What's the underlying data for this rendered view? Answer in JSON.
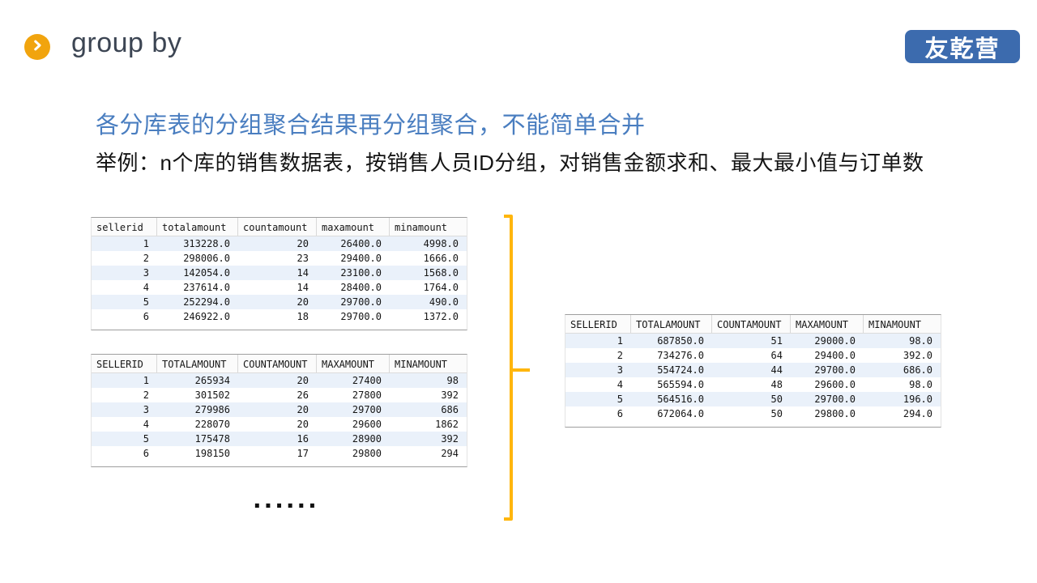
{
  "header": {
    "title": "group by",
    "logo_text": "友乾营"
  },
  "content": {
    "heading": "各分库表的分组聚合结果再分组聚合，不能简单合并",
    "subheading": "举例：n个库的销售数据表，按销售人员ID分组，对销售金额求和、最大最小值与订单数",
    "ellipsis": "......"
  },
  "colors": {
    "accent_amber": "#F1A40E",
    "brace_orange": "#FFB60D",
    "heading_blue": "#4A7EC0",
    "logo_blue": "#3C6BAE",
    "title_gray": "#3C4553",
    "row_stripe_blue": "#EAF1FA"
  },
  "tables": {
    "shard1": {
      "columns": [
        "sellerid",
        "totalamount",
        "countamount",
        "maxamount",
        "minamount"
      ],
      "rows": [
        [
          "1",
          "313228.0",
          "20",
          "26400.0",
          "4998.0"
        ],
        [
          "2",
          "298006.0",
          "23",
          "29400.0",
          "1666.0"
        ],
        [
          "3",
          "142054.0",
          "14",
          "23100.0",
          "1568.0"
        ],
        [
          "4",
          "237614.0",
          "14",
          "28400.0",
          "1764.0"
        ],
        [
          "5",
          "252294.0",
          "20",
          "29700.0",
          "490.0"
        ],
        [
          "6",
          "246922.0",
          "18",
          "29700.0",
          "1372.0"
        ]
      ]
    },
    "shard2": {
      "columns": [
        "SELLERID",
        "TOTALAMOUNT",
        "COUNTAMOUNT",
        "MAXAMOUNT",
        "MINAMOUNT"
      ],
      "rows": [
        [
          "1",
          "265934",
          "20",
          "27400",
          "98"
        ],
        [
          "2",
          "301502",
          "26",
          "27800",
          "392"
        ],
        [
          "3",
          "279986",
          "20",
          "29700",
          "686"
        ],
        [
          "4",
          "228070",
          "20",
          "29600",
          "1862"
        ],
        [
          "5",
          "175478",
          "16",
          "28900",
          "392"
        ],
        [
          "6",
          "198150",
          "17",
          "29800",
          "294"
        ]
      ]
    },
    "merged": {
      "columns": [
        "SELLERID",
        "TOTALAMOUNT",
        "COUNTAMOUNT",
        "MAXAMOUNT",
        "MINAMOUNT"
      ],
      "rows": [
        [
          "1",
          "687850.0",
          "51",
          "29000.0",
          "98.0"
        ],
        [
          "2",
          "734276.0",
          "64",
          "29400.0",
          "392.0"
        ],
        [
          "3",
          "554724.0",
          "44",
          "29700.0",
          "686.0"
        ],
        [
          "4",
          "565594.0",
          "48",
          "29600.0",
          "98.0"
        ],
        [
          "5",
          "564516.0",
          "50",
          "29700.0",
          "196.0"
        ],
        [
          "6",
          "672064.0",
          "50",
          "29800.0",
          "294.0"
        ]
      ]
    }
  }
}
